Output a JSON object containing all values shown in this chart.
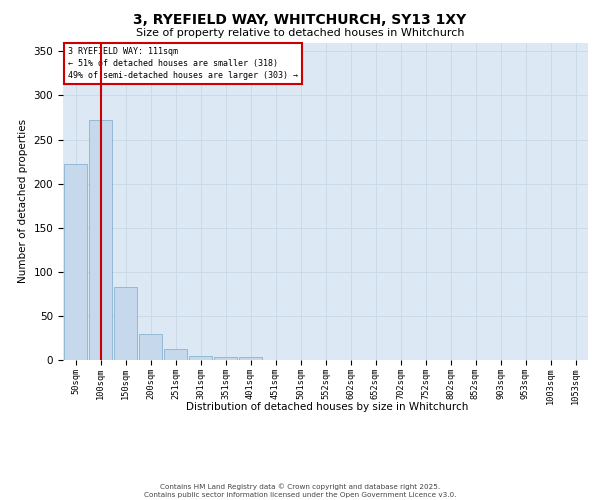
{
  "title_line1": "3, RYEFIELD WAY, WHITCHURCH, SY13 1XY",
  "title_line2": "Size of property relative to detached houses in Whitchurch",
  "xlabel": "Distribution of detached houses by size in Whitchurch",
  "ylabel": "Number of detached properties",
  "bar_labels": [
    "50sqm",
    "100sqm",
    "150sqm",
    "200sqm",
    "251sqm",
    "301sqm",
    "351sqm",
    "401sqm",
    "451sqm",
    "501sqm",
    "552sqm",
    "602sqm",
    "652sqm",
    "702sqm",
    "752sqm",
    "802sqm",
    "852sqm",
    "903sqm",
    "953sqm",
    "1003sqm",
    "1053sqm"
  ],
  "bar_values": [
    222,
    272,
    83,
    29,
    12,
    4,
    3,
    3,
    0,
    0,
    0,
    0,
    0,
    0,
    0,
    0,
    0,
    0,
    0,
    0,
    0
  ],
  "bar_color": "#c5d8ec",
  "bar_edge_color": "#7aaacb",
  "red_line_x": 1.0,
  "red_line_label": "3 RYEFIELD WAY: 111sqm",
  "annotation_line2": "← 51% of detached houses are smaller (318)",
  "annotation_line3": "49% of semi-detached houses are larger (303) →",
  "annotation_box_color": "#ffffff",
  "annotation_box_edge": "#cc0000",
  "ylim": [
    0,
    360
  ],
  "yticks": [
    0,
    50,
    100,
    150,
    200,
    250,
    300,
    350
  ],
  "grid_color": "#c8d8e8",
  "background_color": "#dce8f4",
  "footer_line1": "Contains HM Land Registry data © Crown copyright and database right 2025.",
  "footer_line2": "Contains public sector information licensed under the Open Government Licence v3.0."
}
